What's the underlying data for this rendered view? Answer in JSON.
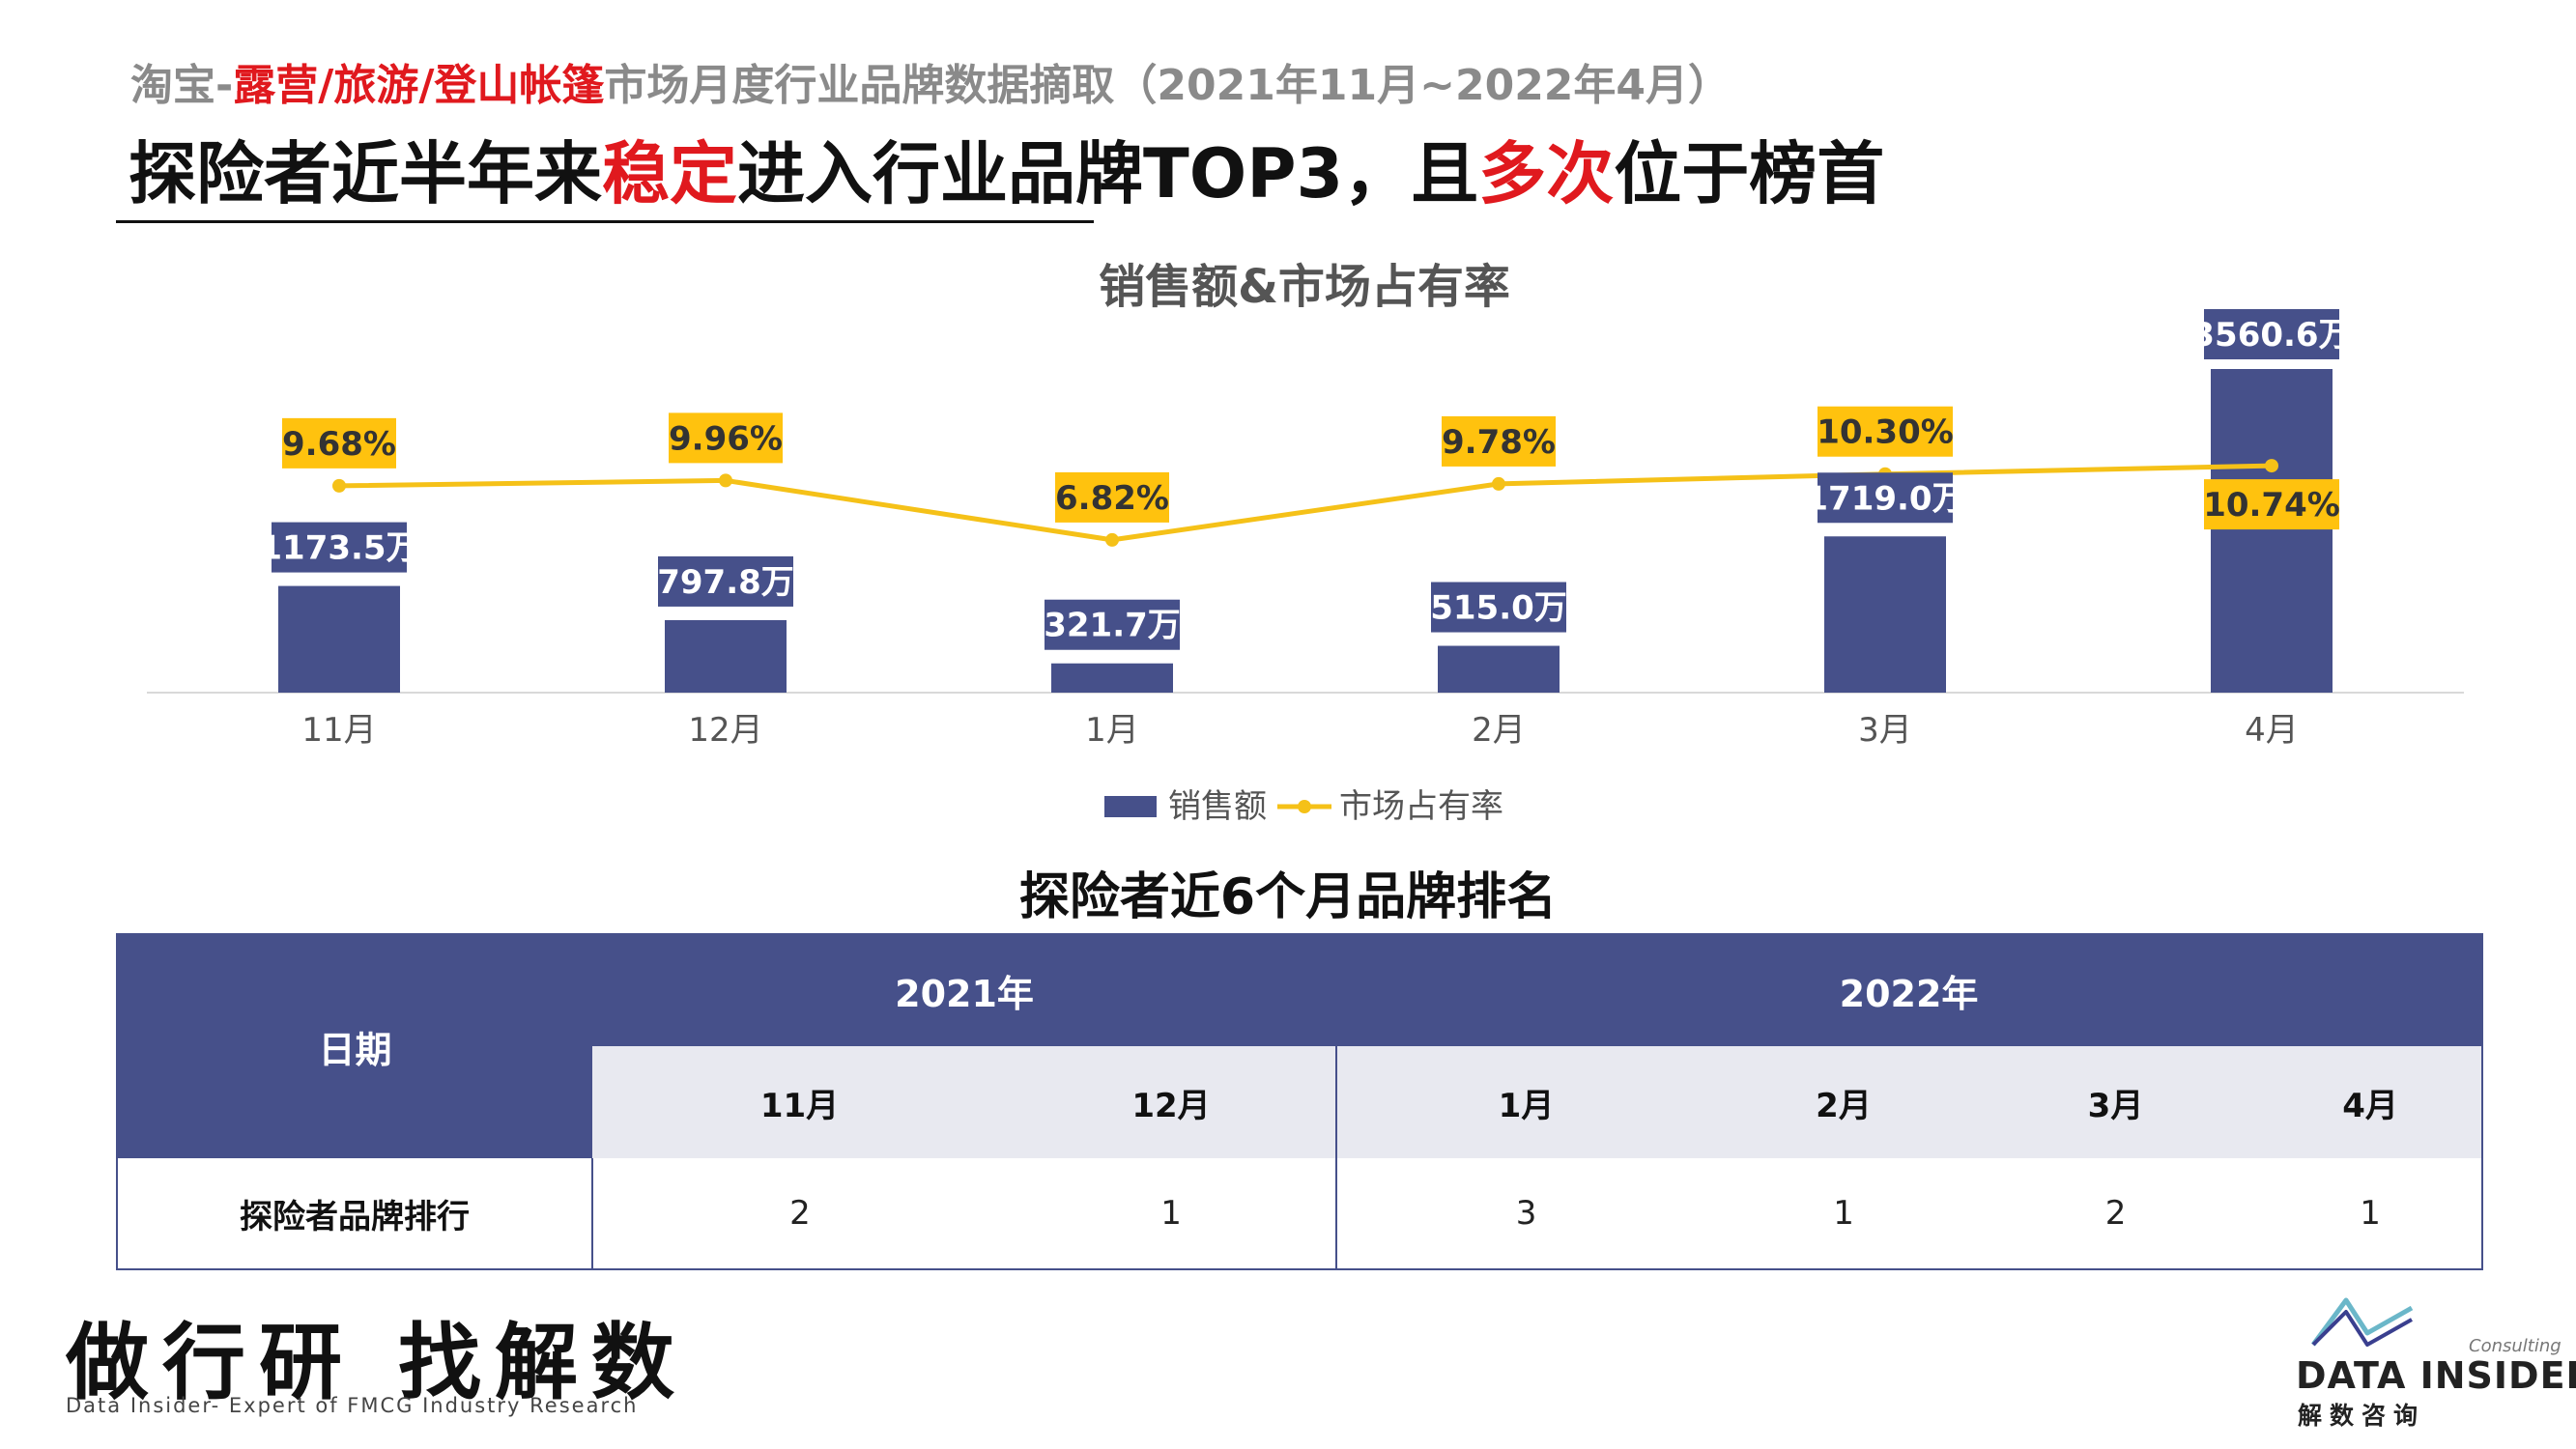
{
  "header": {
    "subtitle_prefix": "淘宝-",
    "subtitle_highlight": "露营/旅游/登山帐篷",
    "subtitle_suffix": "市场月度行业品牌数据摘取（2021年11月~2022年4月）",
    "headline_part1": "探险者近半年来",
    "headline_highlight1": "稳定",
    "headline_part2": "进入行业品牌TOP3，且",
    "headline_highlight2": "多次",
    "headline_part3": "位于榜首",
    "highlight_color": "#e0191e"
  },
  "chart_data": {
    "type": "bar",
    "title": "销售额&市场占有率",
    "categories": [
      "11月",
      "12月",
      "1月",
      "2月",
      "3月",
      "4月"
    ],
    "series": [
      {
        "name": "销售额",
        "type": "bar",
        "values": [
          1173.5,
          797.8,
          321.7,
          515.0,
          1719.0,
          3560.6
        ],
        "labels": [
          "1173.5万",
          "797.8万",
          "321.7万",
          "515.0万",
          "1719.0万",
          "3560.6万"
        ],
        "color": "#46508a"
      },
      {
        "name": "市场占有率",
        "type": "line",
        "values": [
          9.68,
          9.96,
          6.82,
          9.78,
          10.3,
          10.74
        ],
        "labels": [
          "9.68%",
          "9.96%",
          "6.82%",
          "9.78%",
          "10.30%",
          "10.74%"
        ],
        "color": "#f5c118"
      }
    ],
    "legend_position": "bottom",
    "grid": false
  },
  "ranking": {
    "title": "探险者近6个月品牌排名",
    "date_header": "日期",
    "years": [
      "2021年",
      "2022年"
    ],
    "months": [
      "11月",
      "12月",
      "1月",
      "2月",
      "3月",
      "4月"
    ],
    "row_label": "探险者品牌排行",
    "ranks": [
      "2",
      "1",
      "3",
      "1",
      "2",
      "1"
    ]
  },
  "footer": {
    "slogan": "做行研 找解数",
    "tagline": "Data Insider- Expert of FMCG Industry Research",
    "logo_consulting": "Consulting",
    "logo_name": "DATA INSIDER",
    "logo_cn": "解数咨询"
  }
}
